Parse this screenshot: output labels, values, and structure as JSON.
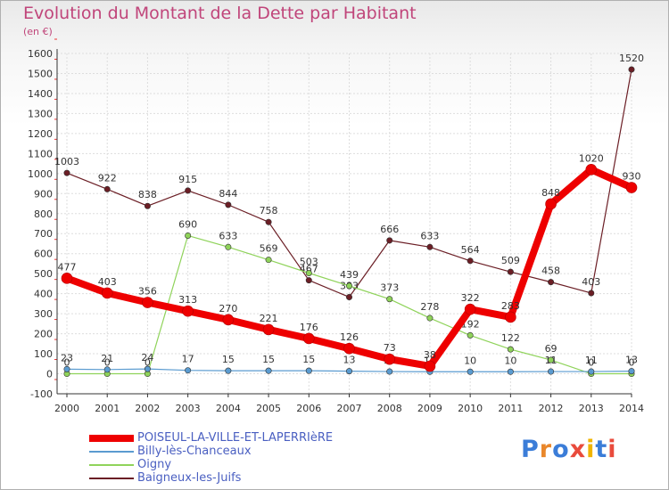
{
  "header": {
    "title": "Evolution du Montant de la Dette par Habitant",
    "unit": "(en €)"
  },
  "logo": {
    "text": "Proxiti",
    "letters": [
      "P",
      "r",
      "o",
      "x",
      "i",
      "t",
      "i"
    ],
    "colors": [
      "#3b7dd8",
      "#e9872b",
      "#3b7dd8",
      "#e94b3c",
      "#f0b400",
      "#3b7dd8",
      "#e94b3c"
    ]
  },
  "chart_data": {
    "type": "line",
    "title": "Evolution du Montant de la Dette par Habitant",
    "ylabel": "(en €)",
    "xlabel": "",
    "ylim": [
      -100,
      1600
    ],
    "yticks": [
      -100,
      0,
      100,
      200,
      300,
      400,
      500,
      600,
      700,
      800,
      900,
      1000,
      1100,
      1200,
      1300,
      1400,
      1500,
      1600
    ],
    "categories": [
      "2000",
      "2001",
      "2002",
      "2003",
      "2004",
      "2005",
      "2006",
      "2007",
      "2008",
      "2009",
      "2010",
      "2011",
      "2012",
      "2013",
      "2014"
    ],
    "grid": true,
    "legend_position": "bottom-left",
    "series": [
      {
        "name": "Baigneux-les-Juifs",
        "color": "#6b1e25",
        "values": [
          1003,
          922,
          838,
          915,
          844,
          758,
          467,
          383,
          666,
          633,
          564,
          509,
          458,
          403,
          1520
        ],
        "labels": [
          "1003",
          "922",
          "838",
          "915",
          "844",
          "758",
          "467",
          "383",
          "666",
          "633",
          "564",
          "509",
          "458",
          "403",
          "1520"
        ]
      },
      {
        "name": "Oigny",
        "color": "#8fd35a",
        "values": [
          0,
          0,
          0,
          690,
          633,
          569,
          503,
          439,
          373,
          278,
          192,
          122,
          69,
          0,
          0
        ],
        "labels": [
          "0",
          "0",
          "0",
          "690",
          "633",
          "569",
          "503",
          "439",
          "373",
          "278",
          "192",
          "122",
          "69",
          "0",
          "0"
        ]
      },
      {
        "name": "Billy-lès-Chanceaux",
        "color": "#5a9bd0",
        "values": [
          23,
          21,
          24,
          17,
          15,
          15,
          15,
          13,
          11,
          10,
          10,
          10,
          11,
          11,
          13
        ],
        "labels": [
          "23",
          "21",
          "24",
          "17",
          "15",
          "15",
          "15",
          "13",
          "11",
          "10",
          "10",
          "10",
          "11",
          "11",
          "13"
        ]
      },
      {
        "name": "POISEUL-LA-VILLE-ET-LAPERRIèRE",
        "color": "#ee0000",
        "values": [
          477,
          403,
          356,
          313,
          270,
          221,
          176,
          126,
          73,
          38,
          322,
          283,
          848,
          1020,
          930
        ],
        "labels": [
          "477",
          "403",
          "356",
          "313",
          "270",
          "221",
          "176",
          "126",
          "73",
          "38",
          "322",
          "283",
          "848",
          "1020",
          "930"
        ]
      }
    ]
  },
  "legend": [
    {
      "label": "POISEUL-LA-VILLE-ET-LAPERRIèRE",
      "color": "#ee0000",
      "thickness": "thick"
    },
    {
      "label": "Billy-lès-Chanceaux",
      "color": "#5a9bd0",
      "thickness": "thin"
    },
    {
      "label": "Oigny",
      "color": "#8fd35a",
      "thickness": "thin"
    },
    {
      "label": "Baigneux-les-Juifs",
      "color": "#6b1e25",
      "thickness": "thin"
    }
  ]
}
